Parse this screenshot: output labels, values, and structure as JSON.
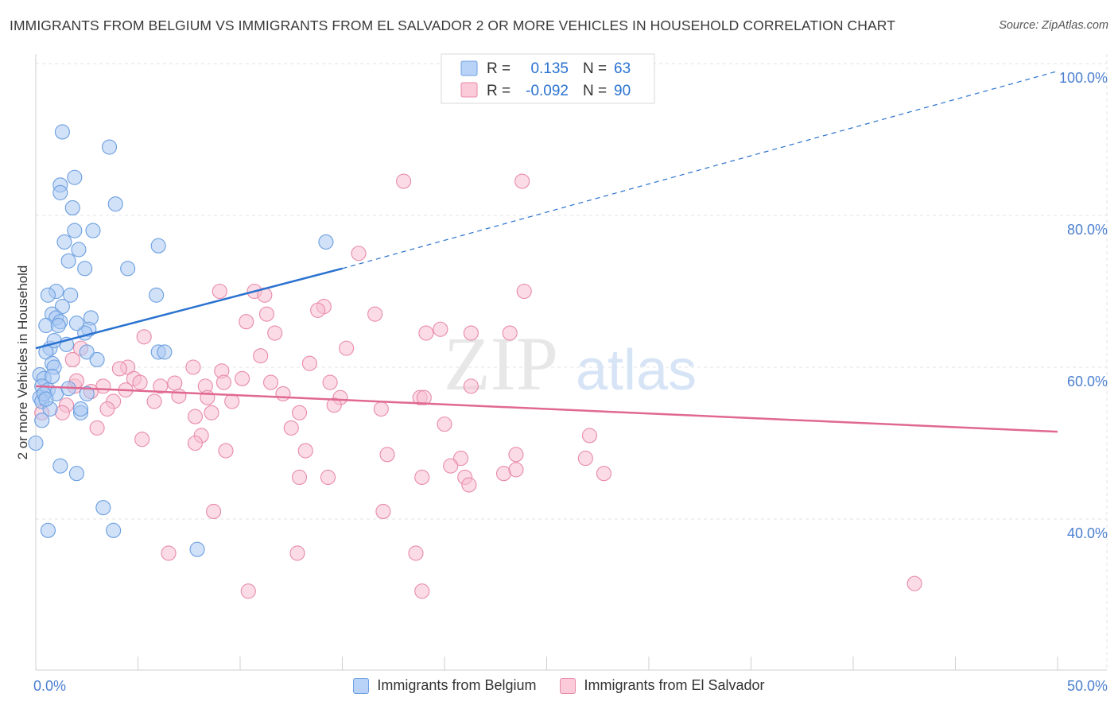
{
  "title": "IMMIGRANTS FROM BELGIUM VS IMMIGRANTS FROM EL SALVADOR 2 OR MORE VEHICLES IN HOUSEHOLD CORRELATION CHART",
  "source": "Source: ZipAtlas.com",
  "watermark": {
    "zip": "ZIP",
    "atlas": "atlas"
  },
  "colors": {
    "belgium_fill": "#a9c8f3",
    "belgium_stroke": "#6c9fe0",
    "belgium_line": "#2a72d0",
    "salvador_fill": "#f8c0d1",
    "salvador_stroke": "#e88aa8",
    "salvador_line": "#e06892",
    "axis_label": "#4a7fd0",
    "grid": "#e3e3e3"
  },
  "stats_legend": {
    "rows": [
      {
        "r_label": "R =",
        "r_value": "0.135",
        "n_label": "N =",
        "n_value": "63"
      },
      {
        "r_label": "R =",
        "r_value": "-0.092",
        "n_label": "N =",
        "n_value": "90"
      }
    ]
  },
  "bottom_legend": {
    "belgium": "Immigrants from Belgium",
    "salvador": "Immigrants from El Salvador"
  },
  "chart_data": {
    "type": "scatter",
    "xlabel": "",
    "ylabel": "2 or more Vehicles in Household",
    "xlim": [
      0,
      50
    ],
    "ylim": [
      20,
      102
    ],
    "x_tick_labels": [
      {
        "value": 0,
        "label": "0.0%"
      },
      {
        "value": 50,
        "label": "50.0%"
      }
    ],
    "x_minor_ticks": [
      0,
      5,
      10,
      15,
      20,
      25,
      30,
      35,
      40,
      45,
      50
    ],
    "y_tick_labels": [
      {
        "value": 100,
        "label": "100.0%"
      },
      {
        "value": 80,
        "label": "80.0%"
      },
      {
        "value": 60,
        "label": "60.0%"
      },
      {
        "value": 40,
        "label": "40.0%"
      }
    ],
    "series": [
      {
        "name": "Immigrants from Belgium",
        "R": 0.135,
        "N": 63,
        "trend": {
          "x0": 0,
          "y0": 62.5,
          "x1": 15,
          "y1": 73.0,
          "dash_x1": 50,
          "dash_y1": 99
        },
        "points": [
          [
            1.3,
            91
          ],
          [
            3.6,
            89
          ],
          [
            1.9,
            85
          ],
          [
            1.2,
            84
          ],
          [
            1.2,
            83
          ],
          [
            3.9,
            81.5
          ],
          [
            1.8,
            81
          ],
          [
            1.9,
            78
          ],
          [
            2.8,
            78
          ],
          [
            1.4,
            76.5
          ],
          [
            6.0,
            76
          ],
          [
            14.2,
            76.5
          ],
          [
            2.1,
            75.5
          ],
          [
            1.6,
            74
          ],
          [
            4.5,
            73
          ],
          [
            2.4,
            73
          ],
          [
            1.0,
            70
          ],
          [
            0.6,
            69.5
          ],
          [
            1.7,
            69.5
          ],
          [
            5.9,
            69.5
          ],
          [
            1.3,
            68
          ],
          [
            0.8,
            67
          ],
          [
            1.0,
            66.5
          ],
          [
            1.2,
            66
          ],
          [
            0.5,
            65.5
          ],
          [
            1.1,
            65.5
          ],
          [
            2.7,
            66.5
          ],
          [
            2.6,
            65
          ],
          [
            2.4,
            64.5
          ],
          [
            0.7,
            62.5
          ],
          [
            0.5,
            62
          ],
          [
            2.5,
            62
          ],
          [
            6.0,
            62
          ],
          [
            0.8,
            60.5
          ],
          [
            0.9,
            60
          ],
          [
            0.2,
            59
          ],
          [
            0.4,
            58.5
          ],
          [
            0.3,
            57.5
          ],
          [
            0.6,
            57
          ],
          [
            1.0,
            56.5
          ],
          [
            2.5,
            56.5
          ],
          [
            0.2,
            56
          ],
          [
            0.3,
            55.5
          ],
          [
            0.7,
            54.5
          ],
          [
            2.2,
            54
          ],
          [
            0.3,
            53
          ],
          [
            0.0,
            50
          ],
          [
            1.2,
            47
          ],
          [
            2.0,
            46
          ],
          [
            3.3,
            41.5
          ],
          [
            0.6,
            38.5
          ],
          [
            3.8,
            38.5
          ],
          [
            7.9,
            36
          ],
          [
            2.2,
            54.5
          ],
          [
            0.4,
            56.5
          ],
          [
            0.5,
            55.8
          ],
          [
            3.0,
            61
          ],
          [
            6.3,
            62
          ],
          [
            1.5,
            63
          ],
          [
            0.9,
            63.5
          ],
          [
            2.0,
            65.8
          ],
          [
            1.6,
            57.2
          ],
          [
            0.8,
            58.8
          ]
        ]
      },
      {
        "name": "Immigrants from El Salvador",
        "R": -0.092,
        "N": 90,
        "trend": {
          "x0": 0,
          "y0": 57.5,
          "x1": 50,
          "y1": 51.5
        },
        "points": [
          [
            18.0,
            84.5
          ],
          [
            23.8,
            84.5
          ],
          [
            15.8,
            75
          ],
          [
            9.0,
            70
          ],
          [
            10.7,
            70
          ],
          [
            23.9,
            70
          ],
          [
            11.2,
            69.5
          ],
          [
            14.1,
            68
          ],
          [
            13.8,
            67.5
          ],
          [
            11.3,
            67
          ],
          [
            16.6,
            67
          ],
          [
            10.3,
            66
          ],
          [
            19.8,
            65
          ],
          [
            19.1,
            64.5
          ],
          [
            5.3,
            64
          ],
          [
            11.7,
            64.5
          ],
          [
            21.3,
            64.5
          ],
          [
            23.2,
            64.5
          ],
          [
            15.2,
            62.5
          ],
          [
            2.2,
            62.5
          ],
          [
            11.0,
            61.5
          ],
          [
            1.8,
            61
          ],
          [
            13.4,
            60.5
          ],
          [
            4.5,
            60
          ],
          [
            7.7,
            60
          ],
          [
            9.1,
            59.5
          ],
          [
            4.8,
            58.5
          ],
          [
            10.1,
            58.5
          ],
          [
            5.1,
            58
          ],
          [
            9.2,
            58
          ],
          [
            11.5,
            58
          ],
          [
            14.4,
            58
          ],
          [
            1.9,
            57.5
          ],
          [
            21.3,
            57.5
          ],
          [
            3.3,
            57.5
          ],
          [
            6.1,
            57.5
          ],
          [
            8.3,
            57.5
          ],
          [
            4.4,
            57
          ],
          [
            12.1,
            56.5
          ],
          [
            14.9,
            56
          ],
          [
            18.8,
            56
          ],
          [
            19.0,
            56
          ],
          [
            8.4,
            56
          ],
          [
            5.8,
            55.5
          ],
          [
            9.6,
            55.5
          ],
          [
            3.8,
            55.5
          ],
          [
            1.5,
            55
          ],
          [
            14.6,
            55
          ],
          [
            3.5,
            54.5
          ],
          [
            8.6,
            54
          ],
          [
            0.3,
            54
          ],
          [
            1.3,
            54
          ],
          [
            12.9,
            54
          ],
          [
            16.9,
            54.5
          ],
          [
            7.8,
            53.5
          ],
          [
            20.0,
            52.5
          ],
          [
            3.0,
            52
          ],
          [
            12.5,
            52
          ],
          [
            27.1,
            51
          ],
          [
            8.1,
            51
          ],
          [
            5.2,
            50.5
          ],
          [
            7.8,
            50
          ],
          [
            9.3,
            49
          ],
          [
            13.2,
            49
          ],
          [
            17.2,
            48.5
          ],
          [
            20.8,
            48
          ],
          [
            23.5,
            48.5
          ],
          [
            20.3,
            47
          ],
          [
            27.8,
            46
          ],
          [
            22.9,
            46
          ],
          [
            12.9,
            45.5
          ],
          [
            14.3,
            45.5
          ],
          [
            18.9,
            45.5
          ],
          [
            21.0,
            45.5
          ],
          [
            23.5,
            46.5
          ],
          [
            21.2,
            44.5
          ],
          [
            26.9,
            48
          ],
          [
            8.7,
            41
          ],
          [
            17.0,
            41
          ],
          [
            6.5,
            35.5
          ],
          [
            12.8,
            35.5
          ],
          [
            18.6,
            35.5
          ],
          [
            10.4,
            30.5
          ],
          [
            18.9,
            30.5
          ],
          [
            43.0,
            31.5
          ],
          [
            2.0,
            58.2
          ],
          [
            4.1,
            59.8
          ],
          [
            7.0,
            56.2
          ],
          [
            2.7,
            56.8
          ],
          [
            6.8,
            57.9
          ]
        ]
      }
    ]
  }
}
